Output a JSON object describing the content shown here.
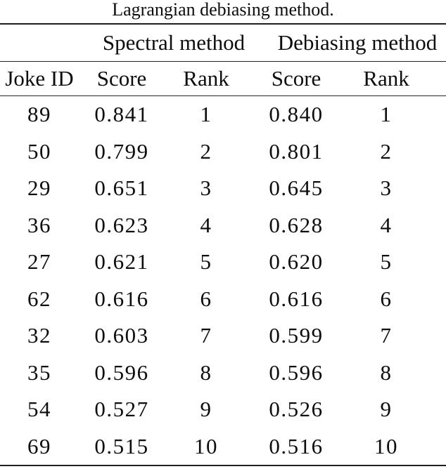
{
  "caption": "Lagrangian debiasing method.",
  "table": {
    "group_headers": [
      {
        "label": "",
        "span": 1
      },
      {
        "label": "Spectral method",
        "span": 2
      },
      {
        "label": "Debiasing method",
        "span": 2
      }
    ],
    "column_headers": [
      "Joke ID",
      "Score",
      "Rank",
      "Score",
      "Rank"
    ],
    "rows": [
      [
        "89",
        "0.841",
        "1",
        "0.840",
        "1"
      ],
      [
        "50",
        "0.799",
        "2",
        "0.801",
        "2"
      ],
      [
        "29",
        "0.651",
        "3",
        "0.645",
        "3"
      ],
      [
        "36",
        "0.623",
        "4",
        "0.628",
        "4"
      ],
      [
        "27",
        "0.621",
        "5",
        "0.620",
        "5"
      ],
      [
        "62",
        "0.616",
        "6",
        "0.616",
        "6"
      ],
      [
        "32",
        "0.603",
        "7",
        "0.599",
        "7"
      ],
      [
        "35",
        "0.596",
        "8",
        "0.596",
        "8"
      ],
      [
        "54",
        "0.527",
        "9",
        "0.526",
        "9"
      ],
      [
        "69",
        "0.515",
        "10",
        "0.516",
        "10"
      ]
    ],
    "colors": {
      "text": "#0d0d0d",
      "rule": "#1e1e1e",
      "background": "#ffffff"
    }
  }
}
